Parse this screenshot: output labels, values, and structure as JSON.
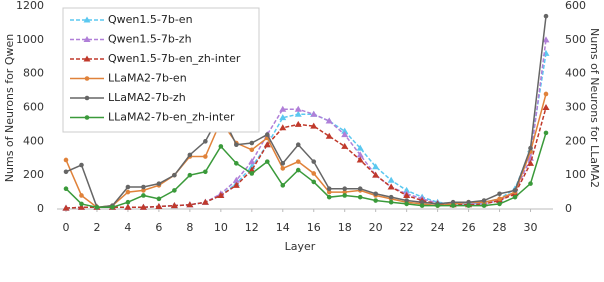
{
  "chart_data": {
    "type": "line",
    "x_label": "Layer",
    "y_label": "Nums of Neurons for Qwen",
    "y2_label": "Nums of Neurons for LLaMA2",
    "x": [
      0,
      1,
      2,
      3,
      4,
      5,
      6,
      7,
      8,
      9,
      10,
      11,
      12,
      13,
      14,
      15,
      16,
      17,
      18,
      19,
      20,
      21,
      22,
      23,
      24,
      25,
      26,
      27,
      28,
      29,
      30,
      31
    ],
    "xlim": [
      0,
      31
    ],
    "xticks": [
      0,
      2,
      4,
      6,
      8,
      10,
      12,
      14,
      16,
      18,
      20,
      22,
      24,
      26,
      28,
      30
    ],
    "ylim": [
      0,
      1200
    ],
    "yticks": [
      0,
      200,
      400,
      600,
      800,
      1000,
      1200
    ],
    "y2lim": [
      0,
      600
    ],
    "y2ticks": [
      0,
      100,
      200,
      300,
      400,
      500,
      600
    ],
    "legend": "upper-left",
    "series": [
      {
        "name": "Qwen1.5-7b-en",
        "color": "#5bc8f0",
        "dash": true,
        "marker": "triangle",
        "values": [
          5,
          10,
          10,
          10,
          10,
          10,
          15,
          20,
          25,
          40,
          80,
          150,
          250,
          380,
          540,
          560,
          560,
          520,
          460,
          360,
          250,
          170,
          110,
          70,
          40,
          30,
          30,
          40,
          60,
          120,
          350,
          920
        ]
      },
      {
        "name": "Qwen1.5-7b-zh",
        "color": "#b07fd8",
        "dash": true,
        "marker": "triangle",
        "values": [
          5,
          10,
          10,
          10,
          10,
          10,
          15,
          20,
          25,
          40,
          90,
          170,
          280,
          440,
          590,
          590,
          560,
          520,
          440,
          320,
          200,
          130,
          90,
          60,
          35,
          30,
          30,
          30,
          50,
          100,
          300,
          1000
        ]
      },
      {
        "name": "Qwen1.5-7b-en_zh-inter",
        "color": "#c0392b",
        "dash": true,
        "marker": "triangle",
        "values": [
          5,
          10,
          10,
          10,
          10,
          10,
          15,
          20,
          25,
          40,
          80,
          140,
          230,
          380,
          480,
          500,
          490,
          430,
          370,
          290,
          200,
          130,
          80,
          50,
          30,
          25,
          25,
          30,
          50,
          90,
          270,
          600
        ]
      },
      {
        "name": "LLaMA2-7b-en",
        "color": "#e0823a",
        "dash": false,
        "marker": "circle",
        "axis": "y2",
        "values": [
          145,
          40,
          5,
          10,
          50,
          55,
          70,
          100,
          155,
          155,
          260,
          195,
          175,
          210,
          120,
          140,
          105,
          50,
          50,
          55,
          40,
          30,
          20,
          15,
          10,
          15,
          20,
          20,
          30,
          50,
          170,
          340
        ]
      },
      {
        "name": "LLaMA2-7b-zh",
        "color": "#666666",
        "dash": false,
        "marker": "circle",
        "axis": "y2",
        "values": [
          110,
          130,
          5,
          10,
          65,
          65,
          75,
          100,
          160,
          200,
          285,
          190,
          195,
          220,
          135,
          190,
          140,
          60,
          60,
          60,
          45,
          35,
          25,
          20,
          15,
          20,
          20,
          25,
          45,
          55,
          180,
          570
        ]
      },
      {
        "name": "LLaMA2-7b-en_zh-inter",
        "color": "#3a9a3a",
        "dash": false,
        "marker": "circle",
        "axis": "y2",
        "values": [
          60,
          15,
          5,
          5,
          20,
          40,
          30,
          55,
          100,
          110,
          185,
          135,
          105,
          140,
          70,
          115,
          80,
          35,
          40,
          35,
          25,
          20,
          15,
          10,
          10,
          10,
          10,
          10,
          15,
          35,
          75,
          225
        ]
      }
    ]
  }
}
